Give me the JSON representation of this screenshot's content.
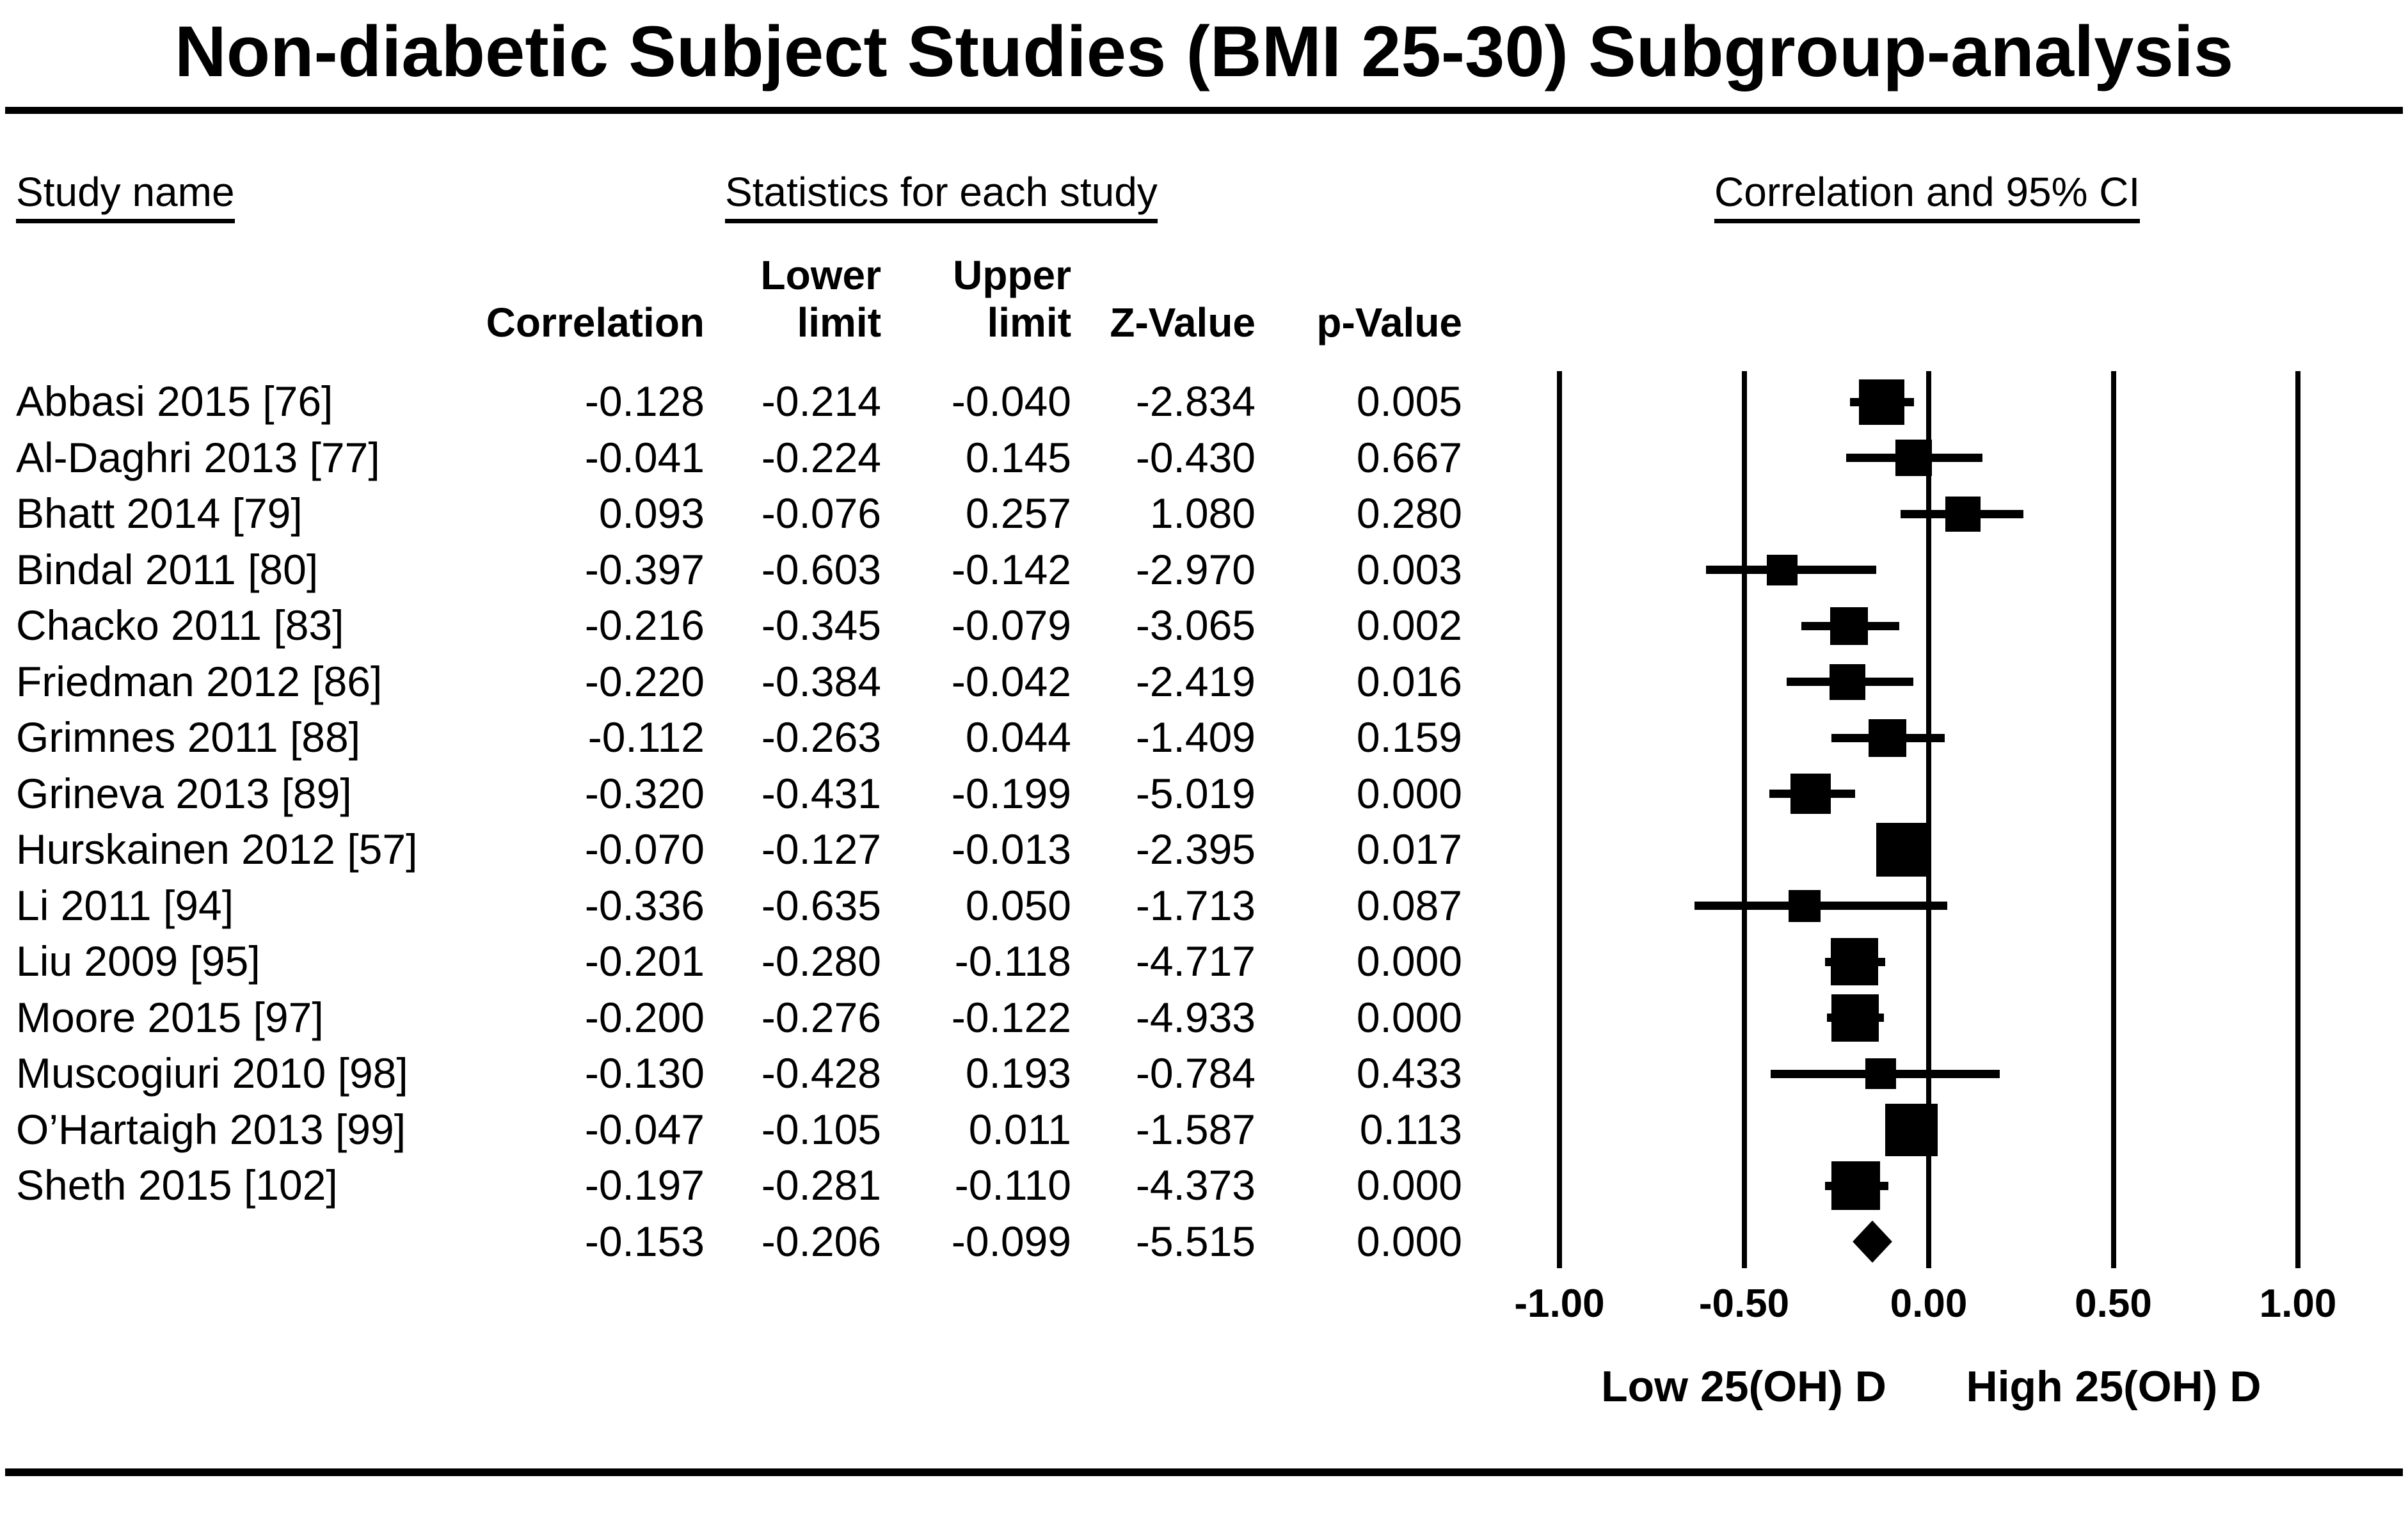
{
  "title": "Non-diabetic Subject Studies (BMI 25-30) Subgroup-analysis",
  "section_headers": {
    "study_name": "Study name",
    "statistics": "Statistics for each study",
    "plot": "Correlation and 95% CI"
  },
  "stats_header": {
    "corr_l1": "",
    "corr_l2": "Correlation",
    "lower_l1": "Lower",
    "lower_l2": "limit",
    "upper_l1": "Upper",
    "upper_l2": "limit",
    "z_l1": "",
    "z_l2": "Z-Value",
    "p_l1": "",
    "p_l2": "p-Value"
  },
  "axis_labels": {
    "low": "Low 25(OH) D",
    "high": "High 25(OH) D"
  },
  "colors": {
    "ink": "#000000",
    "background": "#ffffff"
  },
  "chart_data": {
    "type": "scatter",
    "variant": "forest-plot",
    "title": "Non-diabetic Subject Studies (BMI 25-30) Subgroup-analysis",
    "xlim": [
      -1,
      1
    ],
    "x_tick_values": [
      -1.0,
      -0.5,
      0.0,
      0.5,
      1.0
    ],
    "x_tick_labels": [
      "-1.00",
      "-0.50",
      "0.00",
      "0.50",
      "1.00"
    ],
    "x_label_left": "Low 25(OH) D",
    "x_label_right": "High 25(OH) D",
    "grid": "vertical-lines",
    "legend": "none",
    "studies": [
      {
        "name": "Abbasi 2015 [76]",
        "correlation": "-0.128",
        "lower": "-0.214",
        "upper": "-0.040",
        "z": "-2.834",
        "p": "0.005",
        "weight": 71
      },
      {
        "name": "Al-Daghri 2013 [77]",
        "correlation": "-0.041",
        "lower": "-0.224",
        "upper": "0.145",
        "z": "-0.430",
        "p": "0.667",
        "weight": 57
      },
      {
        "name": "Bhatt 2014 [79]",
        "correlation": "0.093",
        "lower": "-0.076",
        "upper": "0.257",
        "z": "1.080",
        "p": "0.280",
        "weight": 55
      },
      {
        "name": "Bindal 2011 [80]",
        "correlation": "-0.397",
        "lower": "-0.603",
        "upper": "-0.142",
        "z": "-2.970",
        "p": "0.003",
        "weight": 48
      },
      {
        "name": "Chacko 2011 [83]",
        "correlation": "-0.216",
        "lower": "-0.345",
        "upper": "-0.079",
        "z": "-3.065",
        "p": "0.002",
        "weight": 59
      },
      {
        "name": "Friedman 2012 [86]",
        "correlation": "-0.220",
        "lower": "-0.384",
        "upper": "-0.042",
        "z": "-2.419",
        "p": "0.016",
        "weight": 56
      },
      {
        "name": "Grimnes 2011 [88]",
        "correlation": "-0.112",
        "lower": "-0.263",
        "upper": "0.044",
        "z": "-1.409",
        "p": "0.159",
        "weight": 59
      },
      {
        "name": "Grineva 2013 [89]",
        "correlation": "-0.320",
        "lower": "-0.431",
        "upper": "-0.199",
        "z": "-5.019",
        "p": "0.000",
        "weight": 63
      },
      {
        "name": "Hurskainen 2012 [57]",
        "correlation": "-0.070",
        "lower": "-0.127",
        "upper": "-0.013",
        "z": "-2.395",
        "p": "0.017",
        "weight": 84
      },
      {
        "name": "Li 2011 [94]",
        "correlation": "-0.336",
        "lower": "-0.635",
        "upper": "0.050",
        "z": "-1.713",
        "p": "0.087",
        "weight": 50
      },
      {
        "name": "Liu 2009 [95]",
        "correlation": "-0.201",
        "lower": "-0.280",
        "upper": "-0.118",
        "z": "-4.717",
        "p": "0.000",
        "weight": 74
      },
      {
        "name": "Moore 2015 [97]",
        "correlation": "-0.200",
        "lower": "-0.276",
        "upper": "-0.122",
        "z": "-4.933",
        "p": "0.000",
        "weight": 74
      },
      {
        "name": "Muscogiuri 2010 [98]",
        "correlation": "-0.130",
        "lower": "-0.428",
        "upper": "0.193",
        "z": "-0.784",
        "p": "0.433",
        "weight": 48
      },
      {
        "name": "O’Hartaigh 2013 [99]",
        "correlation": "-0.047",
        "lower": "-0.105",
        "upper": "0.011",
        "z": "-1.587",
        "p": "0.113",
        "weight": 82
      },
      {
        "name": "Sheth 2015 [102]",
        "correlation": "-0.197",
        "lower": "-0.281",
        "upper": "-0.110",
        "z": "-4.373",
        "p": "0.000",
        "weight": 76
      }
    ],
    "overall": {
      "name": "",
      "correlation": "-0.153",
      "lower": "-0.206",
      "upper": "-0.099",
      "z": "-5.515",
      "p": "0.000"
    }
  }
}
